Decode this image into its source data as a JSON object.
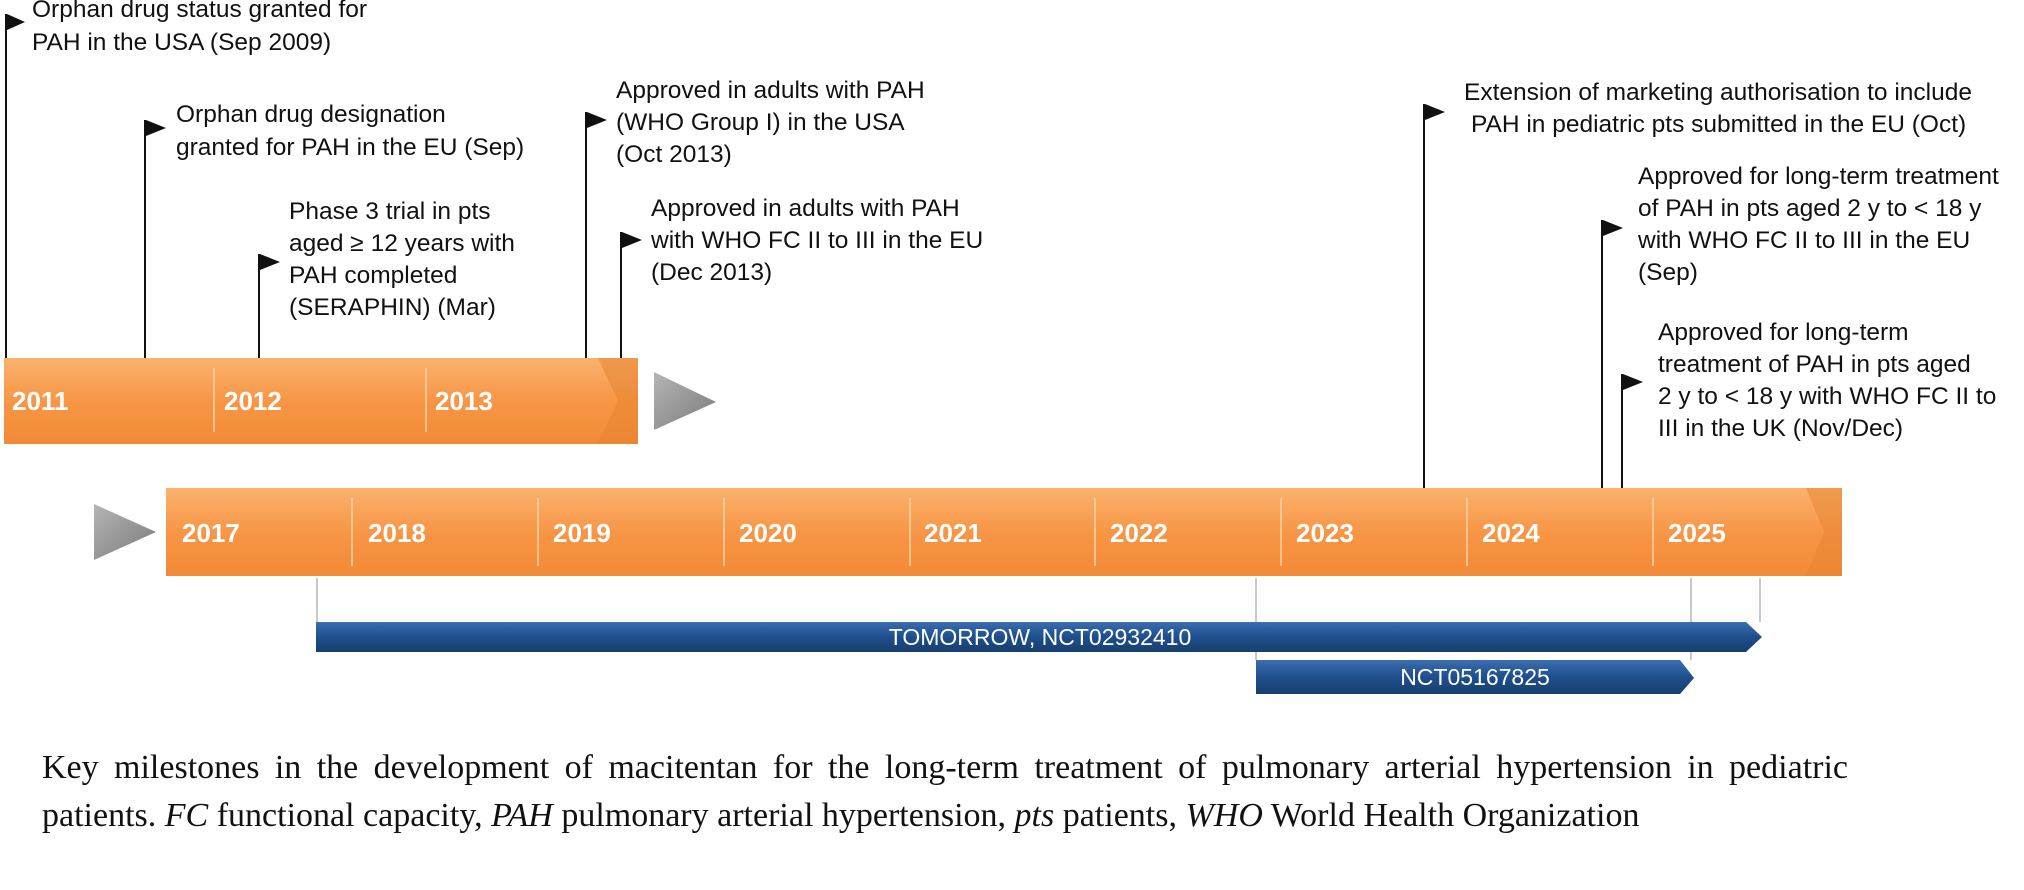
{
  "timeline_top": {
    "years": [
      "2011",
      "2012",
      "2013"
    ]
  },
  "timeline_bottom": {
    "years": [
      "2017",
      "2018",
      "2019",
      "2020",
      "2021",
      "2022",
      "2023",
      "2024",
      "2025"
    ]
  },
  "milestones": [
    {
      "lines": [
        "Orphan drug status granted for",
        "PAH in the USA (Sep 2009)"
      ]
    },
    {
      "lines": [
        "Orphan drug designation",
        "granted for PAH in the EU (Sep)"
      ]
    },
    {
      "lines": [
        "Phase 3 trial in pts",
        "aged ≥ 12 years with",
        "PAH completed",
        "(SERAPHIN) (Mar)"
      ]
    },
    {
      "lines": [
        "Approved in adults with PAH",
        "(WHO Group I) in the USA",
        "(Oct 2013)"
      ]
    },
    {
      "lines": [
        "Approved in adults with PAH",
        "with WHO FC II to III in the EU",
        "(Dec 2013)"
      ]
    },
    {
      "lines": [
        "Extension of marketing authorisation to include",
        "PAH in pediatric pts submitted in the EU (Oct)"
      ]
    },
    {
      "lines": [
        "Approved for long-term treatment",
        "of PAH in pts aged 2 y to < 18 y",
        "with WHO FC II to III in the EU",
        "(Sep)"
      ]
    },
    {
      "lines": [
        "Approved for long-term",
        "treatment of PAH in pts aged",
        "2 y to < 18 y with WHO FC II to",
        "III in the UK (Nov/Dec)"
      ]
    }
  ],
  "trials": [
    {
      "name": "TOMORROW, NCT02932410"
    },
    {
      "name": "NCT05167825"
    }
  ],
  "caption": {
    "text1": "Key milestones in the development of macitentan for the long-term treatment of pulmonary arterial hypertension in pediatric patients. ",
    "abbr1": "FC",
    "def1": " functional capacity, ",
    "abbr2": "PAH",
    "def2": " pulmonary arterial hypertension, ",
    "abbr3": "pts",
    "def3": " patients, ",
    "abbr4": "WHO",
    "def4": " World Health Organization"
  },
  "colors": {
    "bar_orange": "#f79646",
    "bar_orange_dark": "#e57f2a",
    "trial_blue": "#1f4e8c",
    "arrow_gray": "#8c8c8c"
  }
}
